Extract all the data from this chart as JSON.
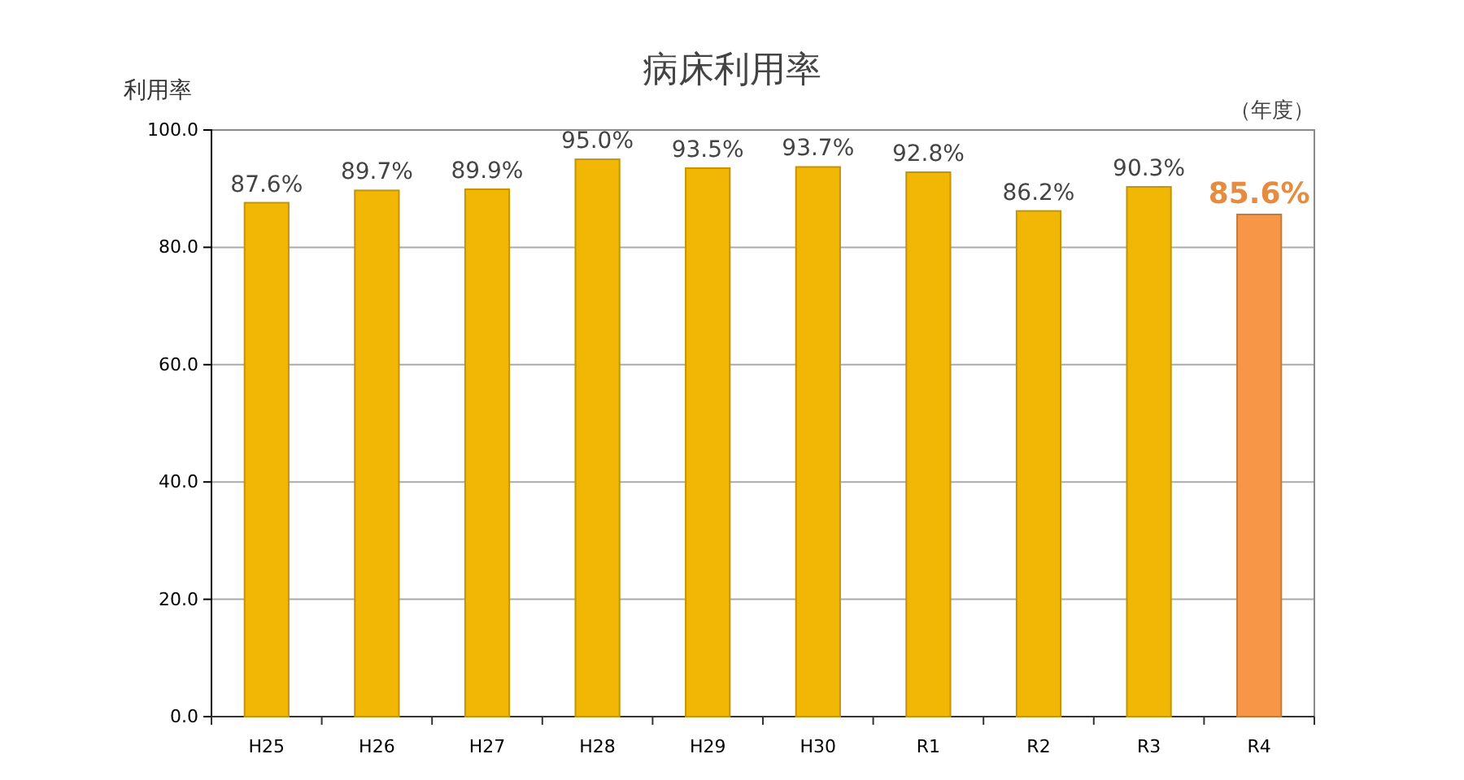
{
  "chart_data": {
    "type": "bar",
    "title": "病床利用率",
    "ylabel": "利用率",
    "xlabel": "（年度）",
    "categories": [
      "H25",
      "H26",
      "H27",
      "H28",
      "H29",
      "H30",
      "R1",
      "R2",
      "R3",
      "R4"
    ],
    "values": [
      87.6,
      89.7,
      89.9,
      95.0,
      93.5,
      93.7,
      92.8,
      86.2,
      90.3,
      85.6
    ],
    "colors": [
      "#f2b705",
      "#f2b705",
      "#f2b705",
      "#f2b705",
      "#f2b705",
      "#f2b705",
      "#f2b705",
      "#f2b705",
      "#f2b705",
      "#f79646"
    ],
    "value_labels": [
      "87.6%",
      "89.7%",
      "89.9%",
      "95.0%",
      "93.5%",
      "93.7%",
      "92.8%",
      "86.2%",
      "90.3%",
      "85.6%"
    ],
    "ylim": [
      0,
      100
    ],
    "yticks": [
      {
        "value": 0,
        "label": "0.0"
      },
      {
        "value": 20,
        "label": "20.0"
      },
      {
        "value": 40,
        "label": "40.0"
      },
      {
        "value": 60,
        "label": "60.0"
      },
      {
        "value": 80,
        "label": "80.0"
      },
      {
        "value": 100,
        "label": "100.0"
      }
    ],
    "grid": "y"
  }
}
